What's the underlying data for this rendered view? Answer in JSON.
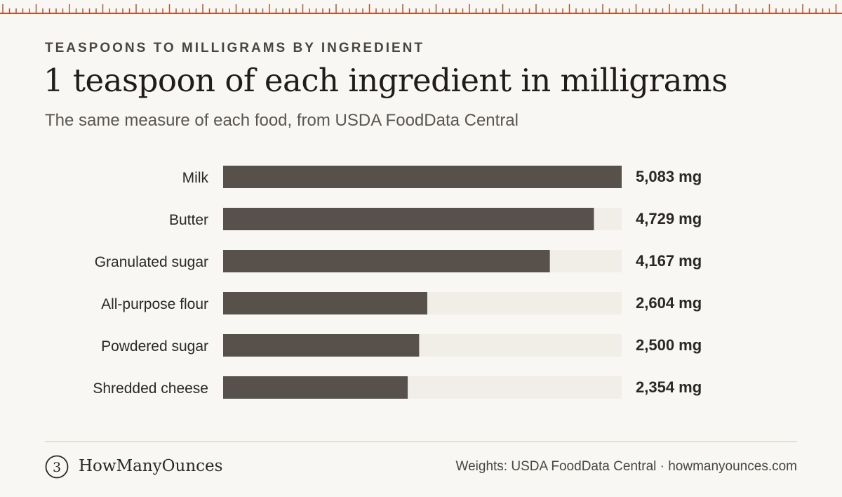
{
  "header": {
    "eyebrow": "TEASPOONS TO MILLIGRAMS BY INGREDIENT",
    "title": "1 teaspoon of each ingredient in milligrams",
    "subtitle": "The same measure of each food, from USDA FoodData Central"
  },
  "footer": {
    "logo_glyph": "3",
    "brand": "HowManyOunces",
    "credit": "Weights: USDA FoodData Central · howmanyounces.com"
  },
  "colors": {
    "bar": "#58514b",
    "track": "#f1eee8",
    "ruler": "#b5562a",
    "background": "#f8f7f3"
  },
  "chart_data": {
    "type": "bar",
    "orientation": "horizontal",
    "categories": [
      "Milk",
      "Butter",
      "Granulated sugar",
      "All-purpose flour",
      "Powdered sugar",
      "Shredded cheese"
    ],
    "values": [
      5083,
      4729,
      4167,
      2604,
      2500,
      2354
    ],
    "value_labels": [
      "5,083 mg",
      "4,729 mg",
      "4,167 mg",
      "2,604 mg",
      "2,500 mg",
      "2,354 mg"
    ],
    "unit": "mg",
    "xlim": [
      0,
      5083
    ],
    "grid": false,
    "legend": "none"
  }
}
